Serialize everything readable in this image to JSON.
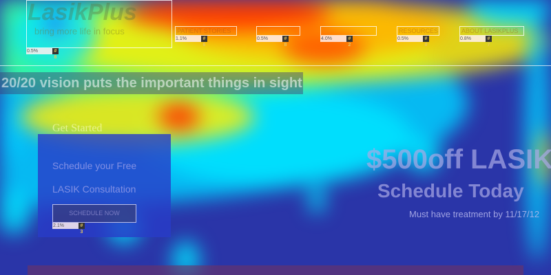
{
  "logo": {
    "name": "LasikPlus",
    "tagline": "bring more life in focus",
    "pct": "0.5%",
    "rank": "# 8"
  },
  "nav": [
    {
      "label": "PATIENT STORIES",
      "pct": "1.1%",
      "rank": "# 6"
    },
    {
      "label": "",
      "pct": "0.5%",
      "rank": "# 8"
    },
    {
      "label": "",
      "pct": "4.0%",
      "rank": "# 2"
    },
    {
      "label": "RESOURCES",
      "pct": "0.5%",
      "rank": "# 8"
    },
    {
      "label": "ABOUT LASIKPLUS",
      "pct": "0.8%",
      "rank": "# 7"
    }
  ],
  "hero": {
    "headline": "20/20 vision puts the important things in sight"
  },
  "card": {
    "title": "Get Started",
    "line1": "Schedule your Free",
    "line2": "LASIK Consultation",
    "button": "SCHEDULE NOW",
    "pct": "2.1%",
    "rank": "# 3"
  },
  "promo": {
    "line1": "$500off LASIK",
    "line2": "Schedule Today",
    "line3": "Must have treatment by 11/17/12"
  },
  "colors": {
    "cold": "#2a35a8",
    "cyan": "#00e5ff",
    "yellow": "#ffee00",
    "red": "#ff2a00"
  }
}
